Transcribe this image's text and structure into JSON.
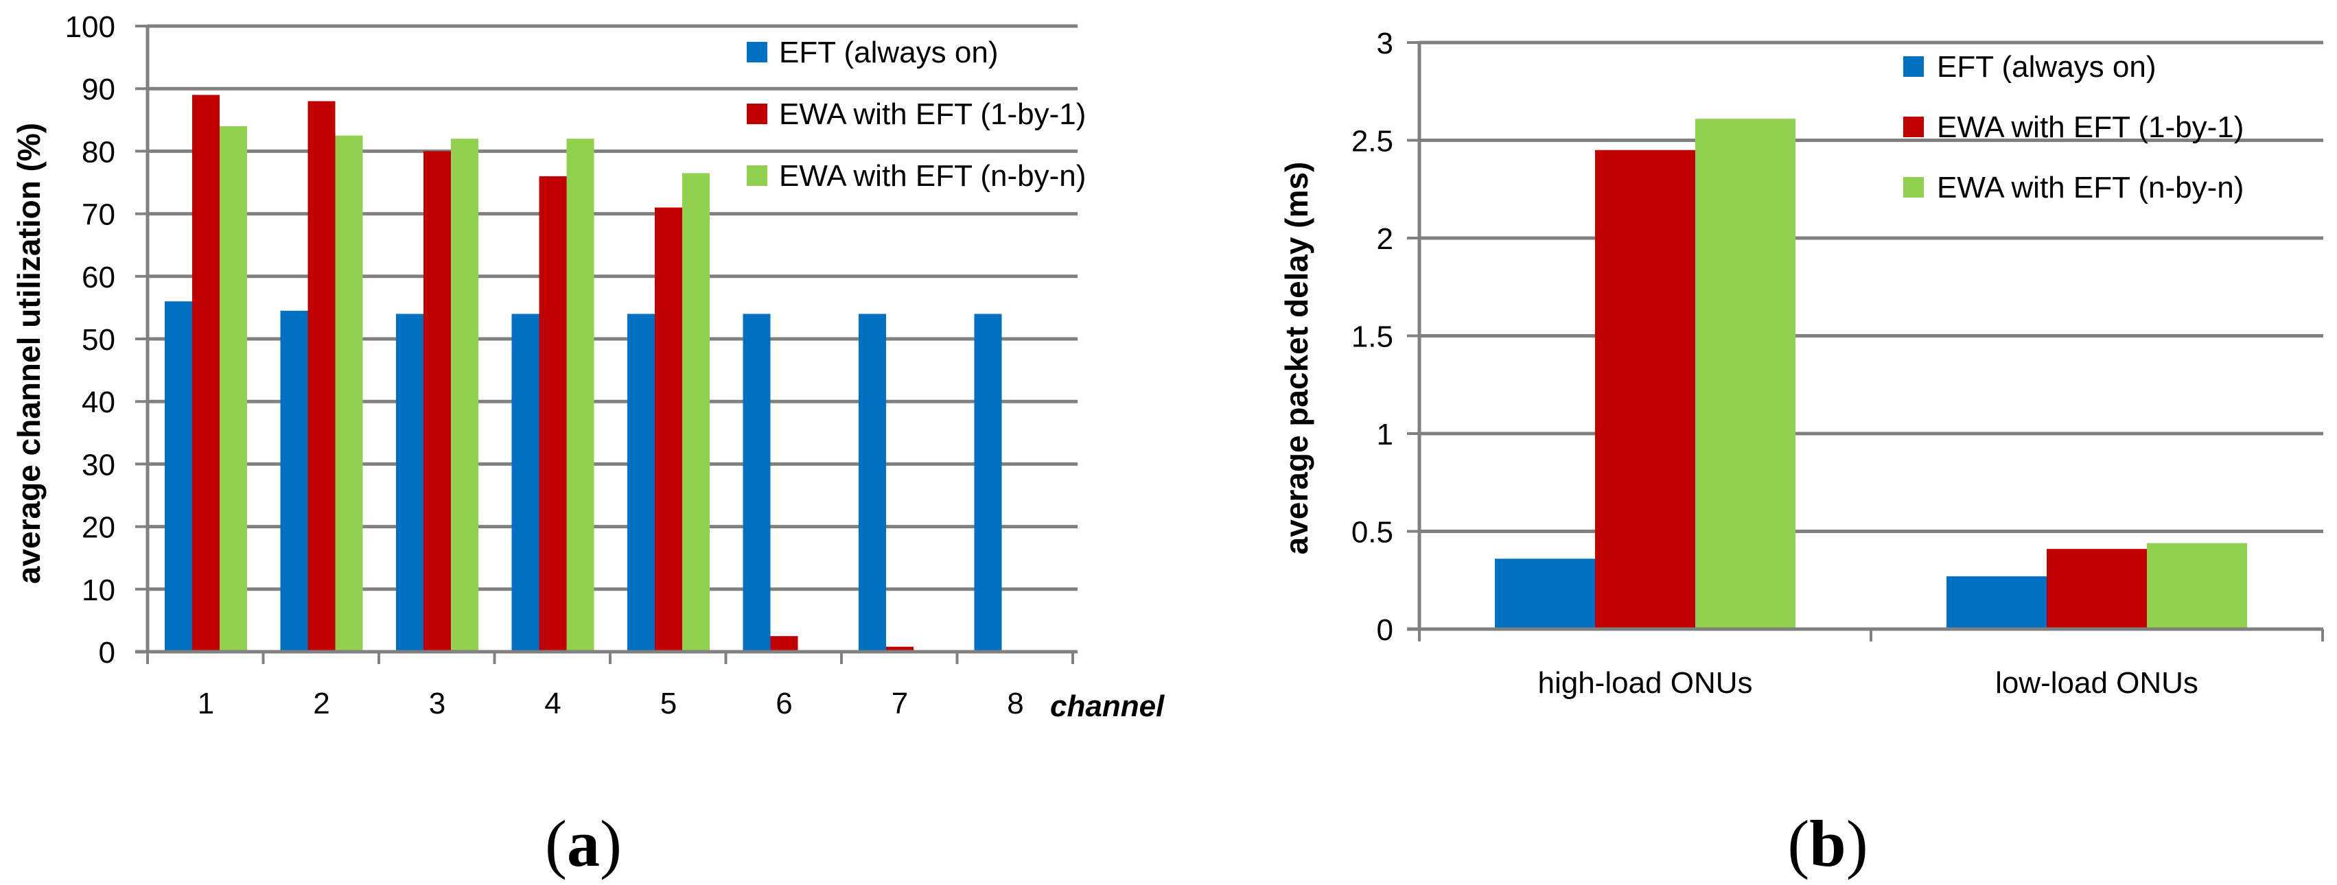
{
  "colors": {
    "eft": "#0070C0",
    "ewa_1by1": "#C00000",
    "ewa_nbyn": "#92D050",
    "grid": "#808080",
    "axis": "#808080"
  },
  "chart_data": [
    {
      "type": "bar",
      "panel": "a",
      "panel_label": {
        "open": "(",
        "letter": "a",
        "close": ")"
      },
      "title": "",
      "ylabel": "average channel utilization (%)",
      "xlabel": "channel",
      "categories": [
        "1",
        "2",
        "3",
        "4",
        "5",
        "6",
        "7",
        "8"
      ],
      "ylim": [
        0,
        100
      ],
      "yticks": [
        "0",
        "10",
        "20",
        "30",
        "40",
        "50",
        "60",
        "70",
        "80",
        "90",
        "100"
      ],
      "ytick_values": [
        0,
        10,
        20,
        30,
        40,
        50,
        60,
        70,
        80,
        90,
        100
      ],
      "grid": true,
      "legend_position": "top-right",
      "series": [
        {
          "name": "EFT (always on)",
          "color_key": "eft",
          "values": [
            56,
            54.5,
            54,
            54,
            54,
            54,
            54,
            54
          ]
        },
        {
          "name": "EWA with EFT (1-by-1)",
          "color_key": "ewa_1by1",
          "values": [
            89,
            88,
            80,
            76,
            71,
            2.5,
            0.8,
            0
          ]
        },
        {
          "name": "EWA with EFT (n-by-n)",
          "color_key": "ewa_nbyn",
          "values": [
            84,
            82.5,
            82,
            82,
            76.5,
            0,
            0,
            0
          ]
        }
      ]
    },
    {
      "type": "bar",
      "panel": "b",
      "panel_label": {
        "open": "(",
        "letter": "b",
        "close": ")"
      },
      "title": "",
      "ylabel": "average packet delay (ms)",
      "xlabel": "",
      "categories": [
        "high-load ONUs",
        "low-load ONUs"
      ],
      "ylim": [
        0,
        3
      ],
      "yticks": [
        "0",
        "0.5",
        "1",
        "1.5",
        "2",
        "2.5",
        "3"
      ],
      "ytick_values": [
        0,
        0.5,
        1,
        1.5,
        2,
        2.5,
        3
      ],
      "grid": true,
      "legend_position": "top-right",
      "series": [
        {
          "name": "EFT (always on)",
          "color_key": "eft",
          "values": [
            0.36,
            0.27
          ]
        },
        {
          "name": "EWA with EFT (1-by-1)",
          "color_key": "ewa_1by1",
          "values": [
            2.45,
            0.41
          ]
        },
        {
          "name": "EWA with EFT (n-by-n)",
          "color_key": "ewa_nbyn",
          "values": [
            2.61,
            0.44
          ]
        }
      ]
    }
  ]
}
